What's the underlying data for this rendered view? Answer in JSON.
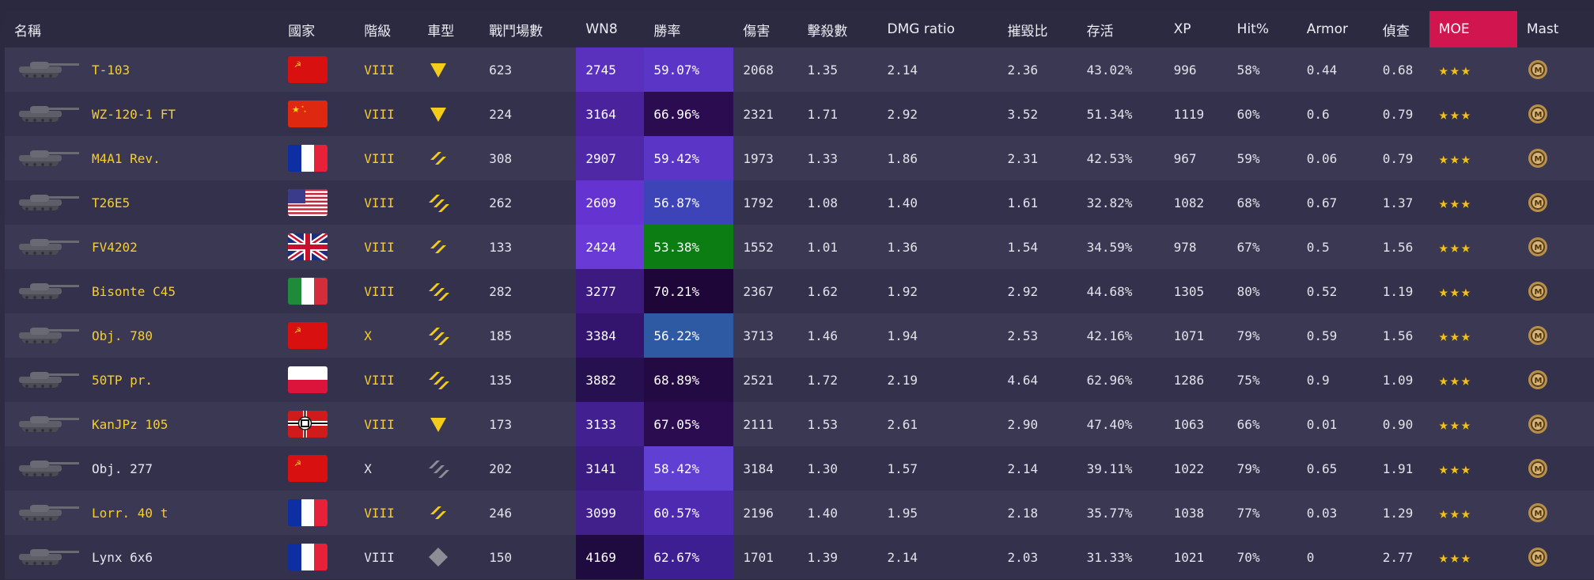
{
  "headers": {
    "name": "名稱",
    "nation": "國家",
    "tier": "階級",
    "type": "車型",
    "battles": "戰鬥場數",
    "wn8": "WN8",
    "winrate": "勝率",
    "damage": "傷害",
    "kills": "擊殺數",
    "dmg_ratio": "DMG ratio",
    "kd": "摧毀比",
    "survival": "存活",
    "xp": "XP",
    "hit": "Hit%",
    "armor": "Armor",
    "spot": "偵查",
    "moe": "MOE",
    "mast": "Mast"
  },
  "colors": {
    "wn8_scale": [
      "#5c2fbe",
      "#4d27a3",
      "#2a0e4a"
    ],
    "win_purple": "#5a35c6",
    "win_deep": "#2c0c50",
    "win_blue": "#3d44b8",
    "win_green": "#0b7d13",
    "win_steel": "#2e5aa3",
    "moe_header": "#d0154f"
  },
  "rows": [
    {
      "name": "T-103",
      "nation": "ussr",
      "tier": "VIII",
      "type": "td",
      "battles": "623",
      "wn8": "2745",
      "winrate": "59.07%",
      "damage": "2068",
      "kills": "1.35",
      "dmg_ratio": "2.14",
      "kd": "2.36",
      "survival": "43.02%",
      "xp": "996",
      "hit": "58%",
      "armor": "0.44",
      "spot": "0.68",
      "moe": "★★★",
      "wn8_bg": "#5a31bd",
      "win_bg": "#5a35c6",
      "prem": true
    },
    {
      "name": "WZ-120-1 FT",
      "nation": "china",
      "tier": "VIII",
      "type": "td",
      "battles": "224",
      "wn8": "3164",
      "winrate": "66.96%",
      "damage": "2321",
      "kills": "1.71",
      "dmg_ratio": "2.92",
      "kd": "3.52",
      "survival": "51.34%",
      "xp": "1119",
      "hit": "60%",
      "armor": "0.6",
      "spot": "0.79",
      "moe": "★★★",
      "wn8_bg": "#4a239c",
      "win_bg": "#2c0c50",
      "prem": true
    },
    {
      "name": "M4A1 Rev.",
      "nation": "france",
      "tier": "VIII",
      "type": "med",
      "battles": "308",
      "wn8": "2907",
      "winrate": "59.42%",
      "damage": "1973",
      "kills": "1.33",
      "dmg_ratio": "1.86",
      "kd": "2.31",
      "survival": "42.53%",
      "xp": "967",
      "hit": "59%",
      "armor": "0.06",
      "spot": "0.79",
      "moe": "★★★",
      "wn8_bg": "#4f28a6",
      "win_bg": "#5a35c6",
      "prem": true
    },
    {
      "name": "T26E5",
      "nation": "usa",
      "tier": "VIII",
      "type": "heavy",
      "battles": "262",
      "wn8": "2609",
      "winrate": "56.87%",
      "damage": "1792",
      "kills": "1.08",
      "dmg_ratio": "1.40",
      "kd": "1.61",
      "survival": "32.82%",
      "xp": "1082",
      "hit": "68%",
      "armor": "0.67",
      "spot": "1.37",
      "moe": "★★★",
      "wn8_bg": "#6533cf",
      "win_bg": "#3d44b8",
      "prem": true
    },
    {
      "name": "FV4202",
      "nation": "uk",
      "tier": "VIII",
      "type": "med",
      "battles": "133",
      "wn8": "2424",
      "winrate": "53.38%",
      "damage": "1552",
      "kills": "1.01",
      "dmg_ratio": "1.36",
      "kd": "1.54",
      "survival": "34.59%",
      "xp": "978",
      "hit": "67%",
      "armor": "0.5",
      "spot": "1.56",
      "moe": "★★★",
      "wn8_bg": "#6a3ad7",
      "win_bg": "#0b7d13",
      "prem": true
    },
    {
      "name": "Bisonte C45",
      "nation": "italy",
      "tier": "VIII",
      "type": "heavy",
      "battles": "282",
      "wn8": "3277",
      "winrate": "70.21%",
      "damage": "2367",
      "kills": "1.62",
      "dmg_ratio": "1.92",
      "kd": "2.92",
      "survival": "44.68%",
      "xp": "1305",
      "hit": "80%",
      "armor": "0.52",
      "spot": "1.19",
      "moe": "★★★",
      "wn8_bg": "#3c1a80",
      "win_bg": "#1e0738",
      "prem": true
    },
    {
      "name": "Obj. 780",
      "nation": "ussr",
      "tier": "X",
      "type": "heavy",
      "battles": "185",
      "wn8": "3384",
      "winrate": "56.22%",
      "damage": "3713",
      "kills": "1.46",
      "dmg_ratio": "1.94",
      "kd": "2.53",
      "survival": "42.16%",
      "xp": "1071",
      "hit": "79%",
      "armor": "0.59",
      "spot": "1.56",
      "moe": "★★★",
      "wn8_bg": "#33156e",
      "win_bg": "#2e5aa3",
      "prem": true
    },
    {
      "name": "50TP pr.",
      "nation": "poland",
      "tier": "VIII",
      "type": "heavy",
      "battles": "135",
      "wn8": "3882",
      "winrate": "68.89%",
      "damage": "2521",
      "kills": "1.72",
      "dmg_ratio": "2.19",
      "kd": "4.64",
      "survival": "62.96%",
      "xp": "1286",
      "hit": "75%",
      "armor": "0.9",
      "spot": "1.09",
      "moe": "★★★",
      "wn8_bg": "#26104f",
      "win_bg": "#240a42",
      "prem": true
    },
    {
      "name": "KanJPz 105",
      "nation": "germany",
      "tier": "VIII",
      "type": "td",
      "battles": "173",
      "wn8": "3133",
      "winrate": "67.05%",
      "damage": "2111",
      "kills": "1.53",
      "dmg_ratio": "2.61",
      "kd": "2.90",
      "survival": "47.40%",
      "xp": "1063",
      "hit": "66%",
      "armor": "0.01",
      "spot": "0.90",
      "moe": "★★★",
      "wn8_bg": "#42208f",
      "win_bg": "#2c0c50",
      "prem": true
    },
    {
      "name": "Obj. 277",
      "nation": "ussr",
      "tier": "X",
      "type": "heavy-grey",
      "battles": "202",
      "wn8": "3141",
      "winrate": "58.42%",
      "damage": "3184",
      "kills": "1.30",
      "dmg_ratio": "1.57",
      "kd": "2.14",
      "survival": "39.11%",
      "xp": "1022",
      "hit": "79%",
      "armor": "0.65",
      "spot": "1.91",
      "moe": "★★★",
      "wn8_bg": "#3a1b80",
      "win_bg": "#6040d2",
      "prem": false
    },
    {
      "name": "Lorr. 40 t",
      "nation": "france",
      "tier": "VIII",
      "type": "med",
      "battles": "246",
      "wn8": "3099",
      "winrate": "60.57%",
      "damage": "2196",
      "kills": "1.40",
      "dmg_ratio": "1.95",
      "kd": "2.18",
      "survival": "35.77%",
      "xp": "1038",
      "hit": "77%",
      "armor": "0.03",
      "spot": "1.29",
      "moe": "★★★",
      "wn8_bg": "#41208c",
      "win_bg": "#4e2ab0",
      "prem": true
    },
    {
      "name": "Lynx 6x6",
      "nation": "france",
      "tier": "VIII",
      "type": "light-grey",
      "battles": "150",
      "wn8": "4169",
      "winrate": "62.67%",
      "damage": "1701",
      "kills": "1.39",
      "dmg_ratio": "2.14",
      "kd": "2.03",
      "survival": "31.33%",
      "xp": "1021",
      "hit": "70%",
      "armor": "0",
      "spot": "2.77",
      "moe": "★★★",
      "wn8_bg": "#1f0b40",
      "win_bg": "#3e1f92",
      "prem": false
    }
  ]
}
